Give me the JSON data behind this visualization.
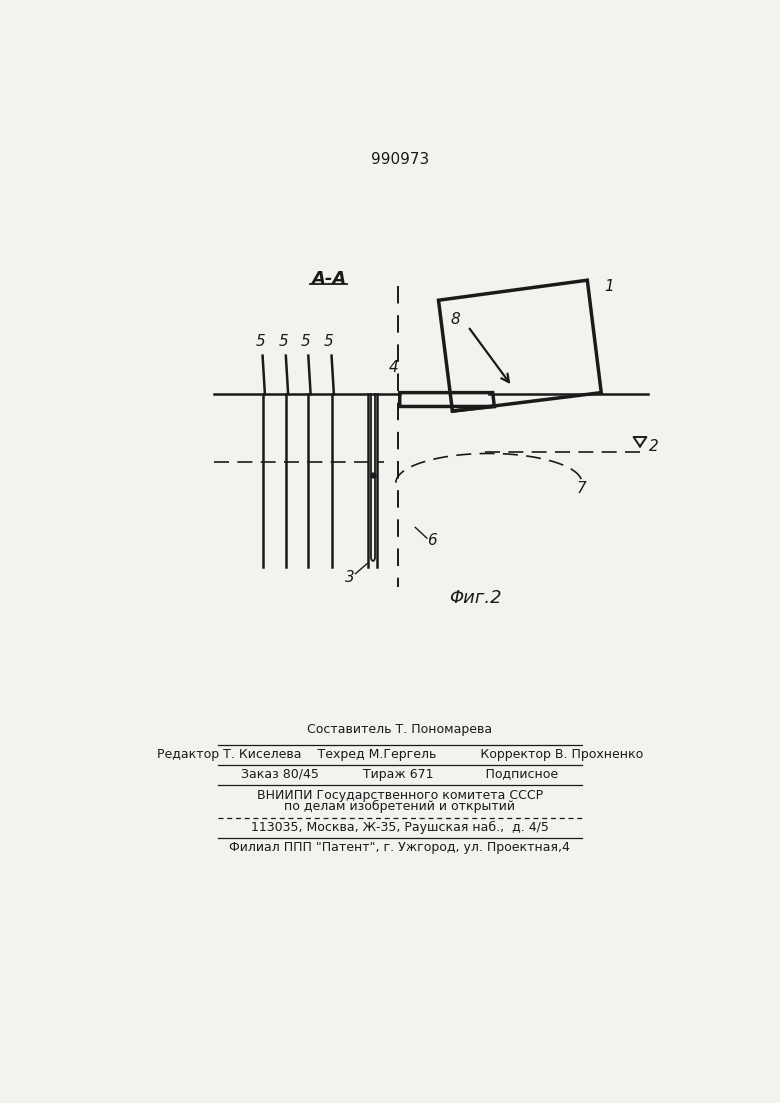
{
  "patent_number": "990973",
  "fig_label": "Φиг.2",
  "section_label": "A-A",
  "bg_color": "#f2f2ee",
  "line_color": "#1a1a1a",
  "footer_line1": "Составитель Т. Пономарева",
  "footer_line2": "Редактор Т. Киселева    Техред М.Гергель           Корректор В. Прохненко",
  "footer_line3": "Заказ 80/45           Тираж 671             Подписное",
  "footer_line4": "ВНИИПИ Государственного комитета СССР",
  "footer_line5": "по делам изобретений и открытий",
  "footer_line6": "113035, Москва, Ж-35, Раушская наб.,  д. 4/5",
  "footer_line7": "Филиал ППП \"Патент\", г. Ужгород, ул. Проектная,4"
}
